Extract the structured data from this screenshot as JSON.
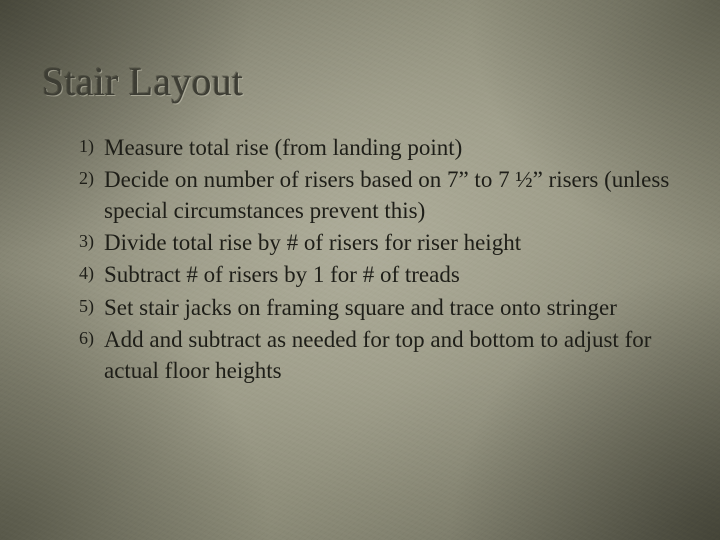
{
  "slide": {
    "title": "Stair Layout",
    "title_color": "#3d3d34",
    "title_fontsize": 40,
    "body_color": "#1e1e18",
    "body_fontsize": 23,
    "number_fontsize": 18,
    "background": {
      "base_gradient": [
        "#5a5a4c",
        "#6a6a5a",
        "#7c7c6a",
        "#8a8a76",
        "#8e8e7a",
        "#888874",
        "#787866",
        "#5e5e50"
      ],
      "vignette_color": "#28281e",
      "highlight_color": "#c8c6b4"
    },
    "steps": [
      "Measure total rise (from landing point)",
      "Decide on number of risers based on 7” to 7 ½” risers (unless special circumstances prevent this)",
      "Divide total rise by # of risers for riser height",
      "Subtract # of risers by 1 for # of treads",
      "Set stair jacks on framing square and trace onto stringer",
      "Add and subtract as needed for top and bottom to adjust for actual floor heights"
    ]
  }
}
